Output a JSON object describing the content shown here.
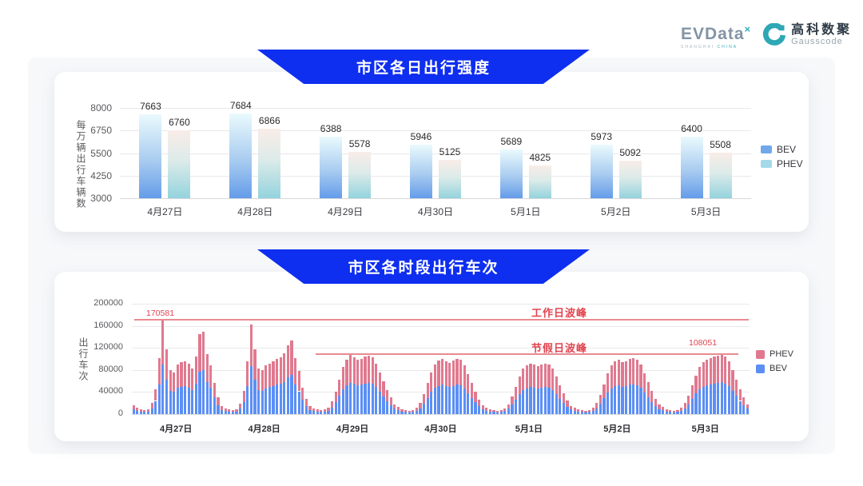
{
  "logo": {
    "evdata_text": "EVData",
    "evdata_sup": "×",
    "evdata_sub_left": "SHANGHAI",
    "evdata_sub_right": "CHINA",
    "brand": "高科数聚",
    "brand_sub": "Gausscode"
  },
  "colors": {
    "banner_blue": "#0e2ef0",
    "bev_grouped_gradient": [
      "#eafafd",
      "#649ce9"
    ],
    "phev_grouped_gradient": [
      "#f9ece8",
      "#94d3dd"
    ],
    "bev_stacked": "#5b8ff5",
    "phev_stacked": "#e0798f",
    "annotation_red": "#e2444f"
  },
  "chart_data": [
    {
      "type": "bar",
      "title": "市区各日出行强度",
      "ylabel": "每万辆出行车辆数",
      "ylim": [
        3000,
        8000
      ],
      "yticks": [
        3000,
        4250,
        5500,
        6750,
        8000
      ],
      "grid": true,
      "legend_position": "right",
      "categories": [
        "4月27日",
        "4月28日",
        "4月29日",
        "4月30日",
        "5月1日",
        "5月2日",
        "5月3日"
      ],
      "series": [
        {
          "name": "BEV",
          "values": [
            7663,
            7684,
            6388,
            5946,
            5689,
            5973,
            6400
          ]
        },
        {
          "name": "PHEV",
          "values": [
            6760,
            6866,
            5578,
            5125,
            4825,
            5092,
            5508
          ]
        }
      ]
    },
    {
      "type": "bar",
      "stacked": true,
      "title": "市区各时段出行车次",
      "ylabel": "出行车次",
      "ylim": [
        0,
        200000
      ],
      "yticks": [
        0,
        40000,
        80000,
        120000,
        160000,
        200000
      ],
      "grid": true,
      "legend_position": "right",
      "x_unit": "hourly, 24 bars per day",
      "categories": [
        "4月27日",
        "4月28日",
        "4月29日",
        "4月30日",
        "5月1日",
        "5月2日",
        "5月3日"
      ],
      "annotations": [
        {
          "type": "hline",
          "label": "工作日波峰",
          "value": 170581,
          "value_label": "170581"
        },
        {
          "type": "hline",
          "label": "节假日波峰",
          "value": 108051,
          "value_label": "108051"
        }
      ],
      "series": [
        {
          "name": "BEV",
          "values": [
            8500,
            5800,
            4200,
            3700,
            4800,
            10600,
            23900,
            53500,
            90400,
            62500,
            42400,
            40300,
            47700,
            49800,
            50900,
            48200,
            43500,
            55700,
            76900,
            79000,
            57800,
            47200,
            30200,
            15900,
            7400,
            5300,
            4200,
            3700,
            4800,
            10100,
            22300,
            50400,
            86400,
            62000,
            44000,
            42400,
            46600,
            48800,
            50900,
            53000,
            54600,
            58300,
            66300,
            70500,
            54100,
            41300,
            25400,
            14800,
            7400,
            5300,
            4200,
            3700,
            4200,
            6400,
            12200,
            21200,
            32900,
            45100,
            52500,
            56700,
            54600,
            51900,
            53000,
            55100,
            56200,
            54600,
            48800,
            40300,
            31800,
            23300,
            15900,
            9500,
            6900,
            4800,
            3700,
            3200,
            3700,
            5800,
            10600,
            19100,
            29700,
            40300,
            47700,
            51400,
            53000,
            50900,
            49300,
            51400,
            53000,
            51900,
            46600,
            38200,
            29700,
            21200,
            13800,
            8500,
            6400,
            4800,
            3700,
            3200,
            3700,
            5300,
            9500,
            17000,
            26500,
            36000,
            43500,
            46600,
            48800,
            47700,
            46100,
            47700,
            48800,
            47700,
            43500,
            36000,
            27600,
            20100,
            13300,
            8000,
            6400,
            4800,
            3700,
            3200,
            3700,
            5800,
            10600,
            18600,
            28600,
            39200,
            46600,
            50400,
            51900,
            49800,
            50900,
            53000,
            54100,
            52500,
            47700,
            39200,
            30700,
            22300,
            14800,
            9000,
            6900,
            4800,
            3700,
            3200,
            3700,
            5800,
            10600,
            18000,
            27600,
            37100,
            45100,
            49800,
            52500,
            54100,
            55100,
            56200,
            57300,
            55100,
            50400,
            42400,
            32900,
            23900,
            15900,
            9500
          ]
        },
        {
          "name": "PHEV",
          "values": [
            7500,
            5200,
            3800,
            3300,
            4200,
            9400,
            21100,
            47500,
            80181,
            55500,
            37600,
            35700,
            42300,
            44200,
            45100,
            42800,
            38500,
            49300,
            68100,
            70000,
            51200,
            41800,
            26800,
            14100,
            6600,
            4700,
            3800,
            3300,
            4200,
            8900,
            19700,
            44600,
            76600,
            55000,
            39000,
            37600,
            41400,
            43200,
            45100,
            47000,
            48400,
            51700,
            58700,
            62500,
            47900,
            36700,
            22600,
            13200,
            6600,
            4700,
            3800,
            3300,
            3800,
            5600,
            10800,
            18800,
            29100,
            39900,
            46500,
            50300,
            48400,
            46100,
            47000,
            48900,
            49800,
            48400,
            43200,
            35700,
            28200,
            20700,
            14100,
            8500,
            6100,
            4200,
            3300,
            2800,
            3300,
            5200,
            9400,
            16900,
            26300,
            35700,
            42300,
            45600,
            47000,
            45100,
            43700,
            45600,
            47000,
            46100,
            41400,
            33800,
            26300,
            18800,
            12200,
            7500,
            5600,
            4200,
            3300,
            2800,
            3300,
            4700,
            8500,
            15000,
            23500,
            32000,
            38500,
            41400,
            43200,
            42300,
            40900,
            42300,
            43200,
            42300,
            38500,
            32000,
            24400,
            17900,
            11700,
            7000,
            5600,
            4200,
            3300,
            2800,
            3300,
            5200,
            9400,
            16400,
            25400,
            34800,
            41400,
            44600,
            46100,
            44200,
            45100,
            47000,
            47900,
            46500,
            42300,
            34800,
            27300,
            19700,
            13200,
            8000,
            6100,
            4200,
            3300,
            2800,
            3300,
            5200,
            9400,
            16000,
            24400,
            32900,
            39900,
            44200,
            46500,
            47900,
            48900,
            49800,
            50751,
            48900,
            44600,
            37600,
            29100,
            21100,
            14100,
            8500
          ]
        }
      ]
    }
  ]
}
